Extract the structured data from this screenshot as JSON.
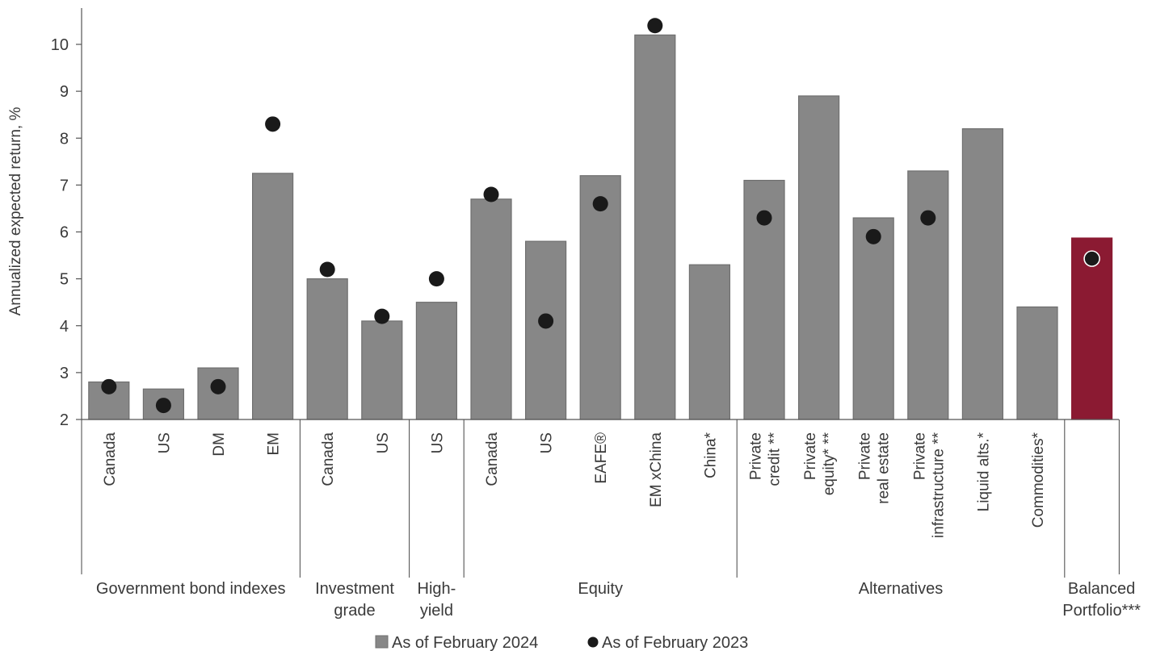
{
  "chart_data": {
    "type": "bar",
    "ylabel": "Annualized expected return, %",
    "ylim": [
      2,
      10.8
    ],
    "yticks": [
      2,
      3,
      4,
      5,
      6,
      7,
      8,
      9,
      10
    ],
    "grid": false,
    "legend_placement": "bottom-center",
    "colors": {
      "bar": "#878787",
      "bar_edge": "#6f6f6f",
      "highlight_bar": "#8b1a32",
      "dot": "#1a1a1a"
    },
    "categories": [
      {
        "label": [
          "Canada"
        ],
        "group": 0
      },
      {
        "label": [
          "US"
        ],
        "group": 0
      },
      {
        "label": [
          "DM"
        ],
        "group": 0
      },
      {
        "label": [
          "EM"
        ],
        "group": 0
      },
      {
        "label": [
          "Canada"
        ],
        "group": 1
      },
      {
        "label": [
          "US"
        ],
        "group": 1
      },
      {
        "label": [
          "US"
        ],
        "group": 2
      },
      {
        "label": [
          "Canada"
        ],
        "group": 3
      },
      {
        "label": [
          "US"
        ],
        "group": 3
      },
      {
        "label": [
          "EAFE®"
        ],
        "group": 3
      },
      {
        "label": [
          "EM xChina"
        ],
        "group": 3
      },
      {
        "label": [
          "China*"
        ],
        "group": 3
      },
      {
        "label": [
          "Private",
          "credit **"
        ],
        "group": 4
      },
      {
        "label": [
          "Private",
          "equity* **"
        ],
        "group": 4
      },
      {
        "label": [
          "Private",
          "real estate"
        ],
        "group": 4
      },
      {
        "label": [
          "Private",
          "infrastructure **"
        ],
        "group": 4
      },
      {
        "label": [
          "Liquid alts.*"
        ],
        "group": 4
      },
      {
        "label": [
          "Commodities*"
        ],
        "group": 4
      },
      {
        "label": [],
        "group": 5
      }
    ],
    "groups": [
      {
        "label": [
          "Government bond indexes"
        ]
      },
      {
        "label": [
          "Investment",
          "grade"
        ]
      },
      {
        "label": [
          "High-",
          "yield"
        ]
      },
      {
        "label": [
          "Equity"
        ]
      },
      {
        "label": [
          "Alternatives"
        ]
      },
      {
        "label": [
          "Balanced",
          "Portfolio***"
        ]
      }
    ],
    "series": [
      {
        "name": "As of February 2024",
        "type": "bar",
        "values": [
          2.8,
          2.65,
          3.1,
          7.25,
          5.0,
          4.1,
          4.5,
          6.7,
          5.8,
          7.2,
          10.2,
          5.3,
          7.1,
          8.9,
          6.3,
          7.3,
          8.2,
          4.4,
          5.87
        ],
        "highlight_index": 18
      },
      {
        "name": "As of February 2023",
        "type": "dot",
        "values": [
          2.7,
          2.3,
          2.7,
          8.3,
          5.2,
          4.2,
          5.0,
          6.8,
          4.1,
          6.6,
          10.4,
          null,
          6.3,
          null,
          5.9,
          6.3,
          null,
          null,
          5.43
        ]
      }
    ]
  }
}
